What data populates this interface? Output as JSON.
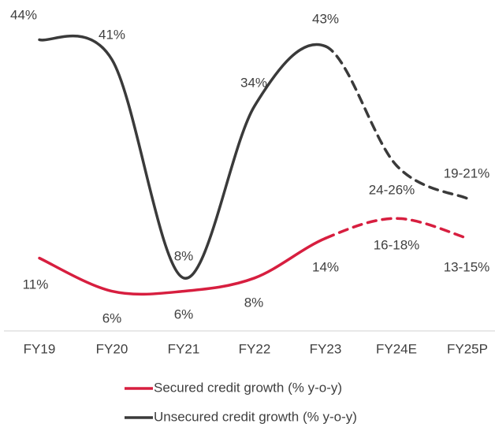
{
  "chart_data": {
    "type": "line",
    "categories": [
      "FY19",
      "FY20",
      "FY21",
      "FY22",
      "FY23",
      "FY24E",
      "FY25P"
    ],
    "dashed_after": "FY23",
    "ylim": [
      0,
      50
    ],
    "series": [
      {
        "name": "Secured credit growth (% y-o-y)",
        "color": "#d71e3f",
        "values": [
          11,
          6,
          6,
          8,
          14,
          17,
          14
        ],
        "value_labels": [
          "11%",
          "6%",
          "6%",
          "8%",
          "14%",
          "16-18%",
          "13-15%"
        ]
      },
      {
        "name": "Unsecured credit growth (% y-o-y)",
        "color": "#3a3a3a",
        "values": [
          44,
          41,
          8,
          34,
          43,
          25,
          20
        ],
        "value_labels": [
          "44%",
          "41%",
          "8%",
          "34%",
          "43%",
          "24-26%",
          "19-21%"
        ]
      }
    ]
  }
}
